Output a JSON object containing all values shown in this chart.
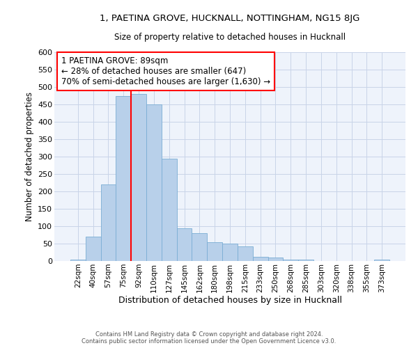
{
  "title_line1": "1, PAETINA GROVE, HUCKNALL, NOTTINGHAM, NG15 8JG",
  "title_line2": "Size of property relative to detached houses in Hucknall",
  "xlabel": "Distribution of detached houses by size in Hucknall",
  "ylabel": "Number of detached properties",
  "footer_line1": "Contains HM Land Registry data © Crown copyright and database right 2024.",
  "footer_line2": "Contains public sector information licensed under the Open Government Licence v3.0.",
  "annotation_line1": "1 PAETINA GROVE: 89sqm",
  "annotation_line2": "← 28% of detached houses are smaller (647)",
  "annotation_line3": "70% of semi-detached houses are larger (1,630) →",
  "bar_labels": [
    "22sqm",
    "40sqm",
    "57sqm",
    "75sqm",
    "92sqm",
    "110sqm",
    "127sqm",
    "145sqm",
    "162sqm",
    "180sqm",
    "198sqm",
    "215sqm",
    "233sqm",
    "250sqm",
    "268sqm",
    "285sqm",
    "303sqm",
    "320sqm",
    "338sqm",
    "355sqm",
    "373sqm"
  ],
  "bar_values": [
    5,
    70,
    220,
    475,
    480,
    450,
    295,
    95,
    80,
    55,
    50,
    43,
    12,
    10,
    5,
    5,
    0,
    0,
    0,
    0,
    5
  ],
  "bar_color": "#b8d0ea",
  "bar_edge_color": "#7aadd4",
  "bg_color": "#eef3fb",
  "grid_color": "#c8d4e8",
  "property_line_color": "red",
  "annotation_box_color": "red",
  "ylim": [
    0,
    600
  ],
  "yticks": [
    0,
    50,
    100,
    150,
    200,
    250,
    300,
    350,
    400,
    450,
    500,
    550,
    600
  ],
  "line_x_index": 3.5,
  "figsize": [
    6.0,
    5.0
  ],
  "dpi": 100
}
